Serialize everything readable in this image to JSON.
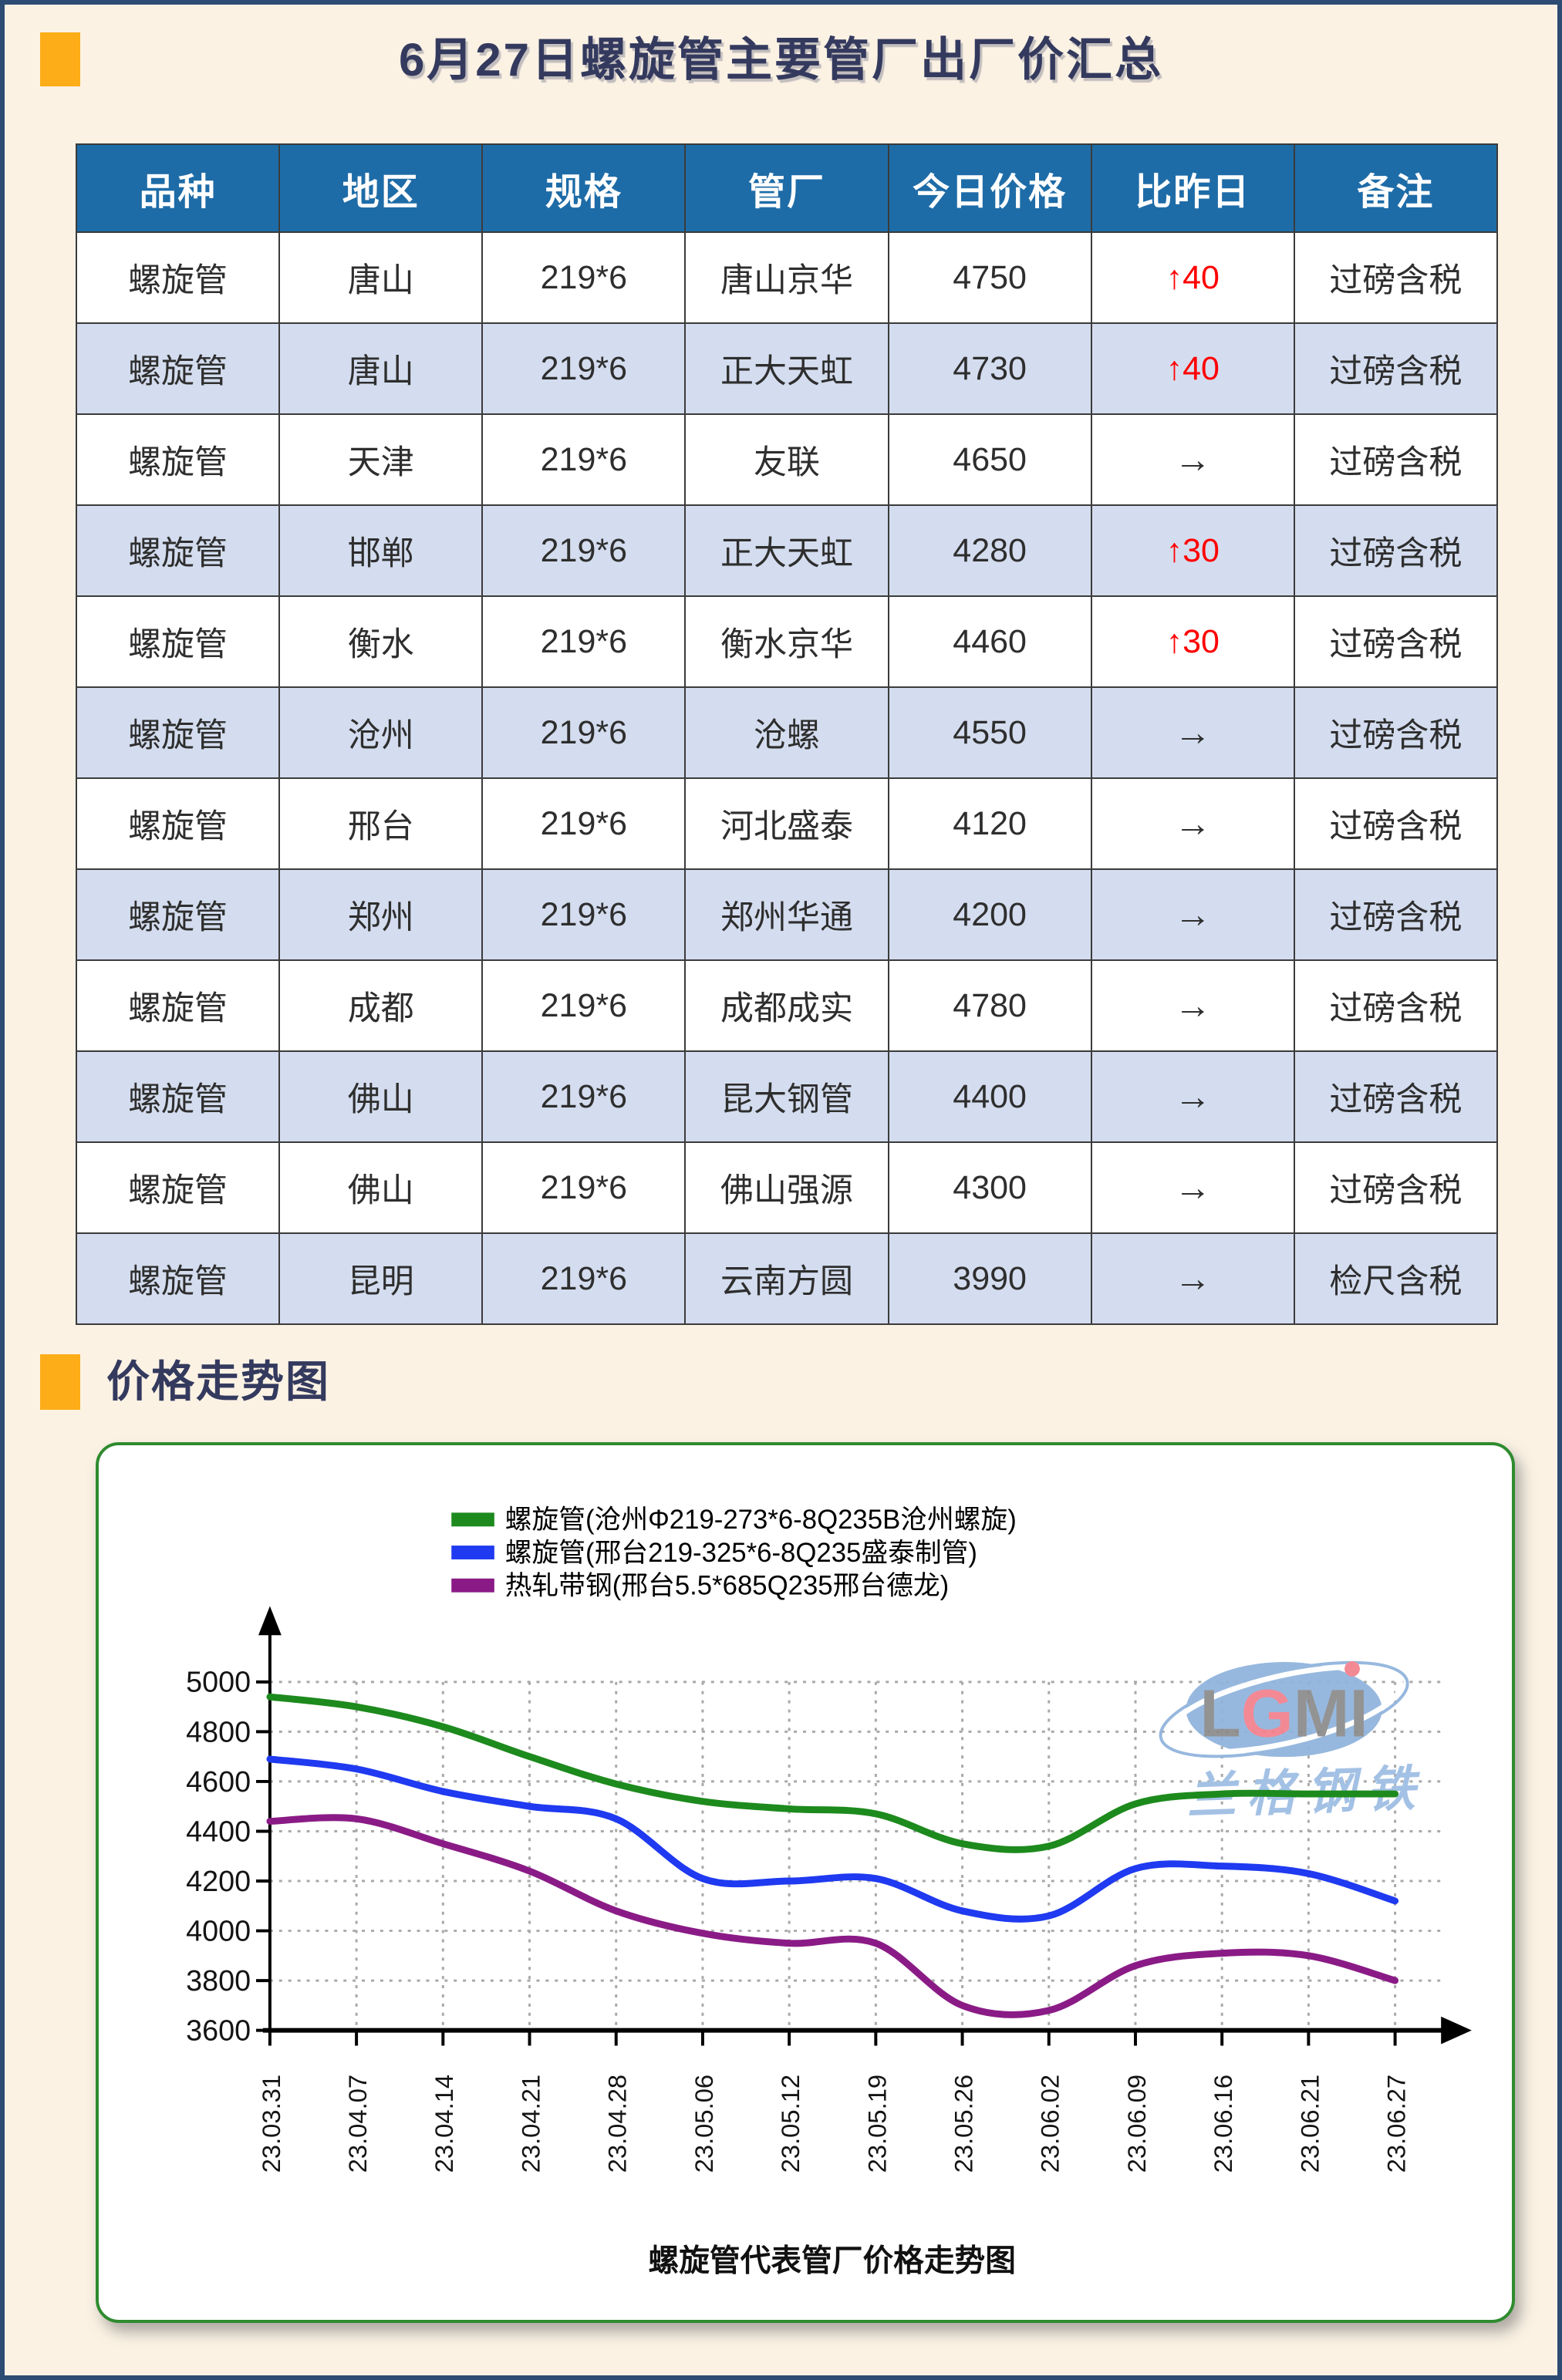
{
  "header": {
    "title": "6月27日螺旋管主要管厂出厂价汇总"
  },
  "section2": {
    "title": "价格走势图"
  },
  "table": {
    "headers": [
      "品种",
      "地区",
      "规格",
      "管厂",
      "今日价格",
      "比昨日",
      "备注"
    ],
    "rows": [
      [
        "螺旋管",
        "唐山",
        "219*6",
        "唐山京华",
        "4750",
        "↑40",
        "过磅含税"
      ],
      [
        "螺旋管",
        "唐山",
        "219*6",
        "正大天虹",
        "4730",
        "↑40",
        "过磅含税"
      ],
      [
        "螺旋管",
        "天津",
        "219*6",
        "友联",
        "4650",
        "→",
        "过磅含税"
      ],
      [
        "螺旋管",
        "邯郸",
        "219*6",
        "正大天虹",
        "4280",
        "↑30",
        "过磅含税"
      ],
      [
        "螺旋管",
        "衡水",
        "219*6",
        "衡水京华",
        "4460",
        "↑30",
        "过磅含税"
      ],
      [
        "螺旋管",
        "沧州",
        "219*6",
        "沧螺",
        "4550",
        "→",
        "过磅含税"
      ],
      [
        "螺旋管",
        "邢台",
        "219*6",
        "河北盛泰",
        "4120",
        "→",
        "过磅含税"
      ],
      [
        "螺旋管",
        "郑州",
        "219*6",
        "郑州华通",
        "4200",
        "→",
        "过磅含税"
      ],
      [
        "螺旋管",
        "成都",
        "219*6",
        "成都成实",
        "4780",
        "→",
        "过磅含税"
      ],
      [
        "螺旋管",
        "佛山",
        "219*6",
        "昆大钢管",
        "4400",
        "→",
        "过磅含税"
      ],
      [
        "螺旋管",
        "佛山",
        "219*6",
        "佛山强源",
        "4300",
        "→",
        "过磅含税"
      ],
      [
        "螺旋管",
        "昆明",
        "219*6",
        "云南方圆",
        "3990",
        "→",
        "检尺含税"
      ]
    ]
  },
  "chart_data": {
    "type": "line",
    "title": "螺旋管代表管厂价格走势图",
    "xlabel": "",
    "ylabel": "",
    "ylim": [
      3600,
      5000
    ],
    "ytick_step": 200,
    "grid": true,
    "legend_position": "top-center",
    "categories": [
      "23.03.31",
      "23.04.07",
      "23.04.14",
      "23.04.21",
      "23.04.28",
      "23.05.06",
      "23.05.12",
      "23.05.19",
      "23.05.26",
      "23.06.02",
      "23.06.09",
      "23.06.16",
      "23.06.21",
      "23.06.27"
    ],
    "series": [
      {
        "name": "螺旋管(沧州Φ219-273*6-8Q235B沧州螺旋)",
        "color": "#1D8A1D",
        "values": [
          4940,
          4900,
          4820,
          4700,
          4590,
          4520,
          4490,
          4470,
          4350,
          4340,
          4510,
          4550,
          4550,
          4550
        ]
      },
      {
        "name": "螺旋管(邢台219-325*6-8Q235盛泰制管)",
        "color": "#1F3AF0",
        "values": [
          4690,
          4650,
          4560,
          4500,
          4450,
          4210,
          4200,
          4210,
          4080,
          4060,
          4250,
          4260,
          4230,
          4120
        ]
      },
      {
        "name": "热轧带钢(邢台5.5*685Q235邢台德龙)",
        "color": "#8A1B86",
        "values": [
          4440,
          4450,
          4350,
          4240,
          4080,
          3990,
          3950,
          3950,
          3700,
          3680,
          3860,
          3910,
          3900,
          3800
        ]
      }
    ],
    "watermark": {
      "logo": "LGMI",
      "text": "兰格钢铁"
    }
  },
  "colors": {
    "page_background": "#FBF2E4",
    "page_border": "#2C4C74",
    "accent_orange": "#FCAD18",
    "title_text": "#343A5E",
    "table_header_bg": "#1E6CA7",
    "table_row_alt_bg": "#D4DDEF",
    "price_up_red": "#FF0000",
    "chart_box_border": "#2F8B2F",
    "grid_line": "#A9A9A9",
    "axis": "#000000",
    "watermark_ellipse": "#8FB3DC",
    "watermark_letter_gray": "#8A8A8A",
    "watermark_letter_pink": "#F2808D",
    "watermark_subtext": "#A3C1E4"
  }
}
